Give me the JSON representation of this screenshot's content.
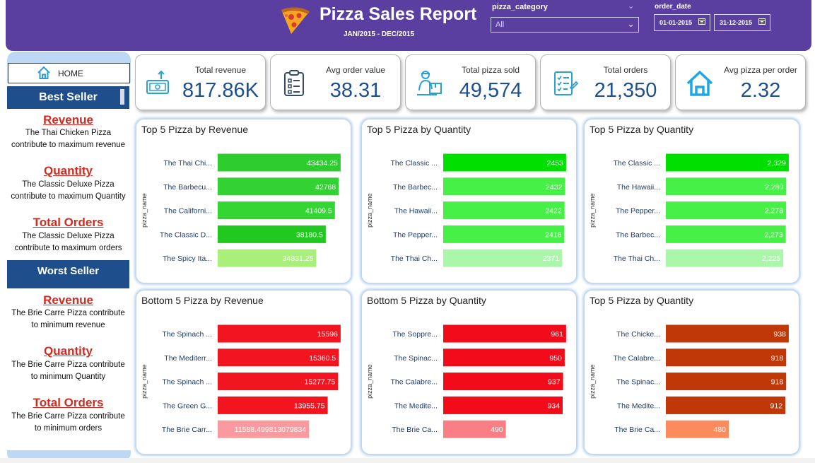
{
  "header": {
    "title": "Pizza Sales Report",
    "period": "JAN/2015 - DEC/2015",
    "filter_category_label": "pizza_category",
    "filter_category_value": "All",
    "filter_date_label": "order_date",
    "date_from": "01-01-2015",
    "date_to": "31-12-2015"
  },
  "sidebar": {
    "home_label": "HOME",
    "best": {
      "heading": "Best Seller",
      "revenue_title": "Revenue",
      "revenue_text": "The Thai Chicken Pizza contribute to maximum revenue",
      "quantity_title": "Quantity",
      "quantity_text": "The Classic Deluxe Pizza contribute to maximum Quantity",
      "orders_title": "Total Orders",
      "orders_text": "The Classic Deluxe Pizza contribute to maximum orders"
    },
    "worst": {
      "heading": "Worst Seller",
      "revenue_title": "Revenue",
      "revenue_text": "The Brie Carre Pizza contribute to minimum revenue",
      "quantity_title": "Quantity",
      "quantity_text": "The Brie Carre Pizza contribute to minimum Quantity",
      "orders_title": "Total Orders",
      "orders_text": "The Brie Carre Pizza contribute to minimum orders"
    }
  },
  "kpis": [
    {
      "label": "Total revenue",
      "value": "817.86K",
      "icon": "money-icon"
    },
    {
      "label": "Avg order value",
      "value": "38.31",
      "icon": "clipboard-icon"
    },
    {
      "label": "Total pizza sold",
      "value": "49,574",
      "icon": "delivery-icon"
    },
    {
      "label": "Total orders",
      "value": "21,350",
      "icon": "checklist-icon"
    },
    {
      "label": "Avg pizza per order",
      "value": "2.32",
      "icon": "home-icon"
    }
  ],
  "colors": {
    "header_bg": "#5a3fa0",
    "kpi_value": "#1d4f93",
    "best_seller_bar": "#1e4e8c",
    "sidebar_title": "#d42a1f"
  },
  "chart_data": [
    {
      "type": "bar",
      "orientation": "horizontal",
      "title": "Top 5 Pizza by Revenue",
      "ylabel": "pizza_name",
      "categories": [
        "The Thai Chi...",
        "The Barbecu...",
        "The Californi...",
        "The Classic D...",
        "The Spicy Ita..."
      ],
      "values": [
        43434.25,
        42768,
        41409.5,
        38180.5,
        34831.25
      ],
      "value_labels": [
        "43434.25",
        "42768",
        "41409.5",
        "38180.5",
        "34831.25"
      ],
      "colors": [
        "#2ecc2e",
        "#33d133",
        "#34d634",
        "#20c820",
        "#a8f07a"
      ]
    },
    {
      "type": "bar",
      "orientation": "horizontal",
      "title": "Top 5 Pizza by Quantity",
      "ylabel": "pizza_name",
      "categories": [
        "The Classic ...",
        "The Barbec...",
        "The Hawaii...",
        "The Pepper...",
        "The Thai Ch..."
      ],
      "values": [
        2453,
        2432,
        2422,
        2418,
        2371
      ],
      "value_labels": [
        "2453",
        "2432",
        "2422",
        "2418",
        "2371"
      ],
      "colors": [
        "#00e000",
        "#47f047",
        "#47f047",
        "#47f047",
        "#aaf7aa"
      ]
    },
    {
      "type": "bar",
      "orientation": "horizontal",
      "title": "Top 5 Pizza by Quantity",
      "ylabel": "pizza_name",
      "categories": [
        "The Classic ...",
        "The Hawaii...",
        "The Pepper...",
        "The Barbec...",
        "The Thai Ch..."
      ],
      "values": [
        2329,
        2280,
        2278,
        2273,
        2225
      ],
      "value_labels": [
        "2,329",
        "2,280",
        "2,278",
        "2,273",
        "2,225"
      ],
      "colors": [
        "#00e000",
        "#47f047",
        "#47f047",
        "#47f047",
        "#aaf7aa"
      ]
    },
    {
      "type": "bar",
      "orientation": "horizontal",
      "title": "Bottom 5 Pizza by Revenue",
      "ylabel": "pizza_name",
      "categories": [
        "The Spinach ...",
        "The Mediterr...",
        "The Spinach ...",
        "The Green G...",
        "The Brie Carr..."
      ],
      "values": [
        15596,
        15360.5,
        15277.75,
        13955.75,
        11588.499813079834
      ],
      "value_labels": [
        "15596",
        "15360.5",
        "15277.75",
        "13955.75",
        "11588.499813079834"
      ],
      "colors": [
        "#f2151f",
        "#f2151f",
        "#f2151f",
        "#f2151f",
        "#f89a9e"
      ]
    },
    {
      "type": "bar",
      "orientation": "horizontal",
      "title": "Bottom 5 Pizza by Quantity",
      "ylabel": "pizza_name",
      "categories": [
        "The Soppre...",
        "The Spinac...",
        "The Calabre...",
        "The Medite...",
        "The Brie Ca..."
      ],
      "values": [
        961,
        950,
        937,
        934,
        490
      ],
      "value_labels": [
        "961",
        "950",
        "937",
        "934",
        "490"
      ],
      "colors": [
        "#f20b18",
        "#f20b18",
        "#f20b18",
        "#f20b18",
        "#fa7f85"
      ]
    },
    {
      "type": "bar",
      "orientation": "horizontal",
      "title": "Top 5 Pizza by Quantity",
      "ylabel": "pizza_name",
      "categories": [
        "The Chicke...",
        "The Calabre...",
        "The Spinac...",
        "The Medite...",
        "The Brie Ca..."
      ],
      "values": [
        938,
        918,
        918,
        912,
        480
      ],
      "value_labels": [
        "938",
        "918",
        "918",
        "912",
        "480"
      ],
      "colors": [
        "#c03708",
        "#c03708",
        "#c03708",
        "#c03708",
        "#fb8a5c"
      ]
    }
  ]
}
